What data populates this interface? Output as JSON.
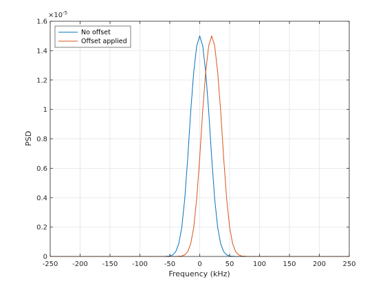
{
  "chart_data": {
    "type": "line",
    "xlabel": "Frequency (kHz)",
    "ylabel": "PSD",
    "xlim": [
      -250,
      250
    ],
    "ylim": [
      0,
      1.6
    ],
    "y_scale_exponent_label": "×10",
    "y_scale_exponent": "-5",
    "xticks": [
      -250,
      -200,
      -150,
      -100,
      -50,
      0,
      50,
      100,
      150,
      200,
      250
    ],
    "yticks": [
      0,
      0.2,
      0.4,
      0.6,
      0.8,
      1,
      1.2,
      1.4,
      1.6
    ],
    "grid": true,
    "legend_position": "top-left",
    "series": [
      {
        "name": "No offset",
        "color": "#0072BD",
        "x": [
          -250,
          -60,
          -50,
          -45,
          -40,
          -35,
          -30,
          -25,
          -20,
          -15,
          -10,
          -5,
          0,
          5,
          10,
          15,
          20,
          25,
          30,
          35,
          40,
          45,
          50,
          60,
          250
        ],
        "y": [
          0,
          0,
          0.003,
          0.011,
          0.033,
          0.087,
          0.198,
          0.393,
          0.672,
          0.99,
          1.255,
          1.433,
          1.5,
          1.433,
          1.255,
          0.99,
          0.672,
          0.393,
          0.198,
          0.087,
          0.033,
          0.011,
          0.003,
          0,
          0
        ]
      },
      {
        "name": "Offset applied",
        "color": "#D95319",
        "x": [
          -250,
          -40,
          -30,
          -25,
          -20,
          -15,
          -10,
          -5,
          0,
          5,
          10,
          15,
          20,
          25,
          30,
          35,
          40,
          45,
          50,
          55,
          60,
          65,
          70,
          80,
          250
        ],
        "y": [
          0,
          0,
          0.003,
          0.011,
          0.033,
          0.087,
          0.198,
          0.393,
          0.672,
          0.99,
          1.255,
          1.433,
          1.5,
          1.433,
          1.255,
          0.99,
          0.672,
          0.393,
          0.198,
          0.087,
          0.033,
          0.011,
          0.003,
          0,
          0
        ]
      }
    ]
  }
}
